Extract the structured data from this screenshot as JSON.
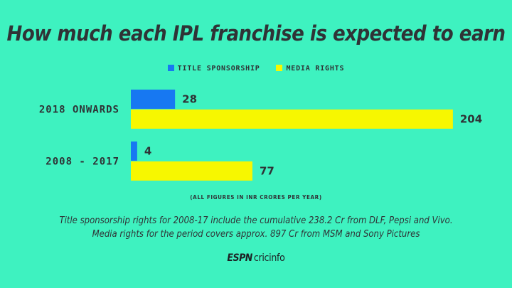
{
  "header": {
    "title": "How much each IPL franchise is expected to earn"
  },
  "legend": [
    {
      "label": "TITLE SPONSORSHIP",
      "color": "#1778f2"
    },
    {
      "label": "MEDIA RIGHTS",
      "color": "#f7f700"
    }
  ],
  "chart_data": {
    "type": "bar",
    "orientation": "horizontal",
    "categories": [
      "2018 ONWARDS",
      "2008 - 2017"
    ],
    "series": [
      {
        "name": "TITLE SPONSORSHIP",
        "values": [
          28,
          4
        ],
        "color": "#1778f2"
      },
      {
        "name": "MEDIA RIGHTS",
        "values": [
          204,
          77
        ],
        "color": "#f7f700"
      }
    ],
    "title": "How much each IPL franchise is expected to earn",
    "xlabel": "",
    "ylabel": "",
    "grid": false,
    "legend_position": "top"
  },
  "note": "(ALL FIGURES IN INR CRORES PER YEAR)",
  "footnote": {
    "line1": "Title sponsorship rights for 2008-17 include the cumulative 238.2 Cr from DLF, Pepsi and Vivo.",
    "line2": "Media rights for the period covers approx. 897 Cr from MSM and Sony Pictures"
  },
  "brand": {
    "part1": "ESPN",
    "part2": "cricinfo"
  }
}
